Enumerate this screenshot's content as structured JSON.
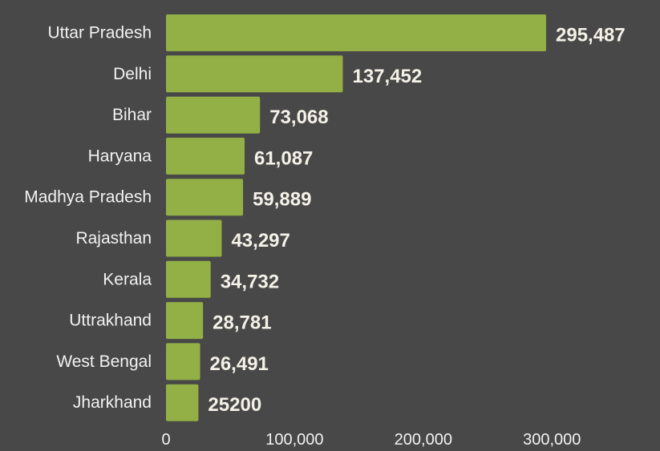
{
  "colors": {
    "background": "#484848",
    "bar": "#93b046",
    "text": "#f2f2f2",
    "value_text": "#f4f1e8"
  },
  "chart_data": {
    "type": "bar",
    "orientation": "horizontal",
    "categories": [
      "Uttar Pradesh",
      "Delhi",
      "Bihar",
      "Haryana",
      "Madhya Pradesh",
      "Rajasthan",
      "Kerala",
      "Uttrakhand",
      "West Bengal",
      "Jharkhand"
    ],
    "values": [
      295487,
      137452,
      73068,
      61087,
      59889,
      43297,
      34732,
      28781,
      26491,
      25200
    ],
    "value_labels": [
      "295,487",
      "137,452",
      "73,068",
      "61,087",
      "59,889",
      "43,297",
      "34,732",
      "28,781",
      "26,491",
      "25200"
    ],
    "xlim": [
      0,
      300000
    ],
    "x_ticks": [
      0,
      100000,
      200000,
      300000
    ],
    "x_tick_labels": [
      "0",
      "100,000",
      "200,000",
      "300,000"
    ],
    "grid": false,
    "legend": "none"
  }
}
